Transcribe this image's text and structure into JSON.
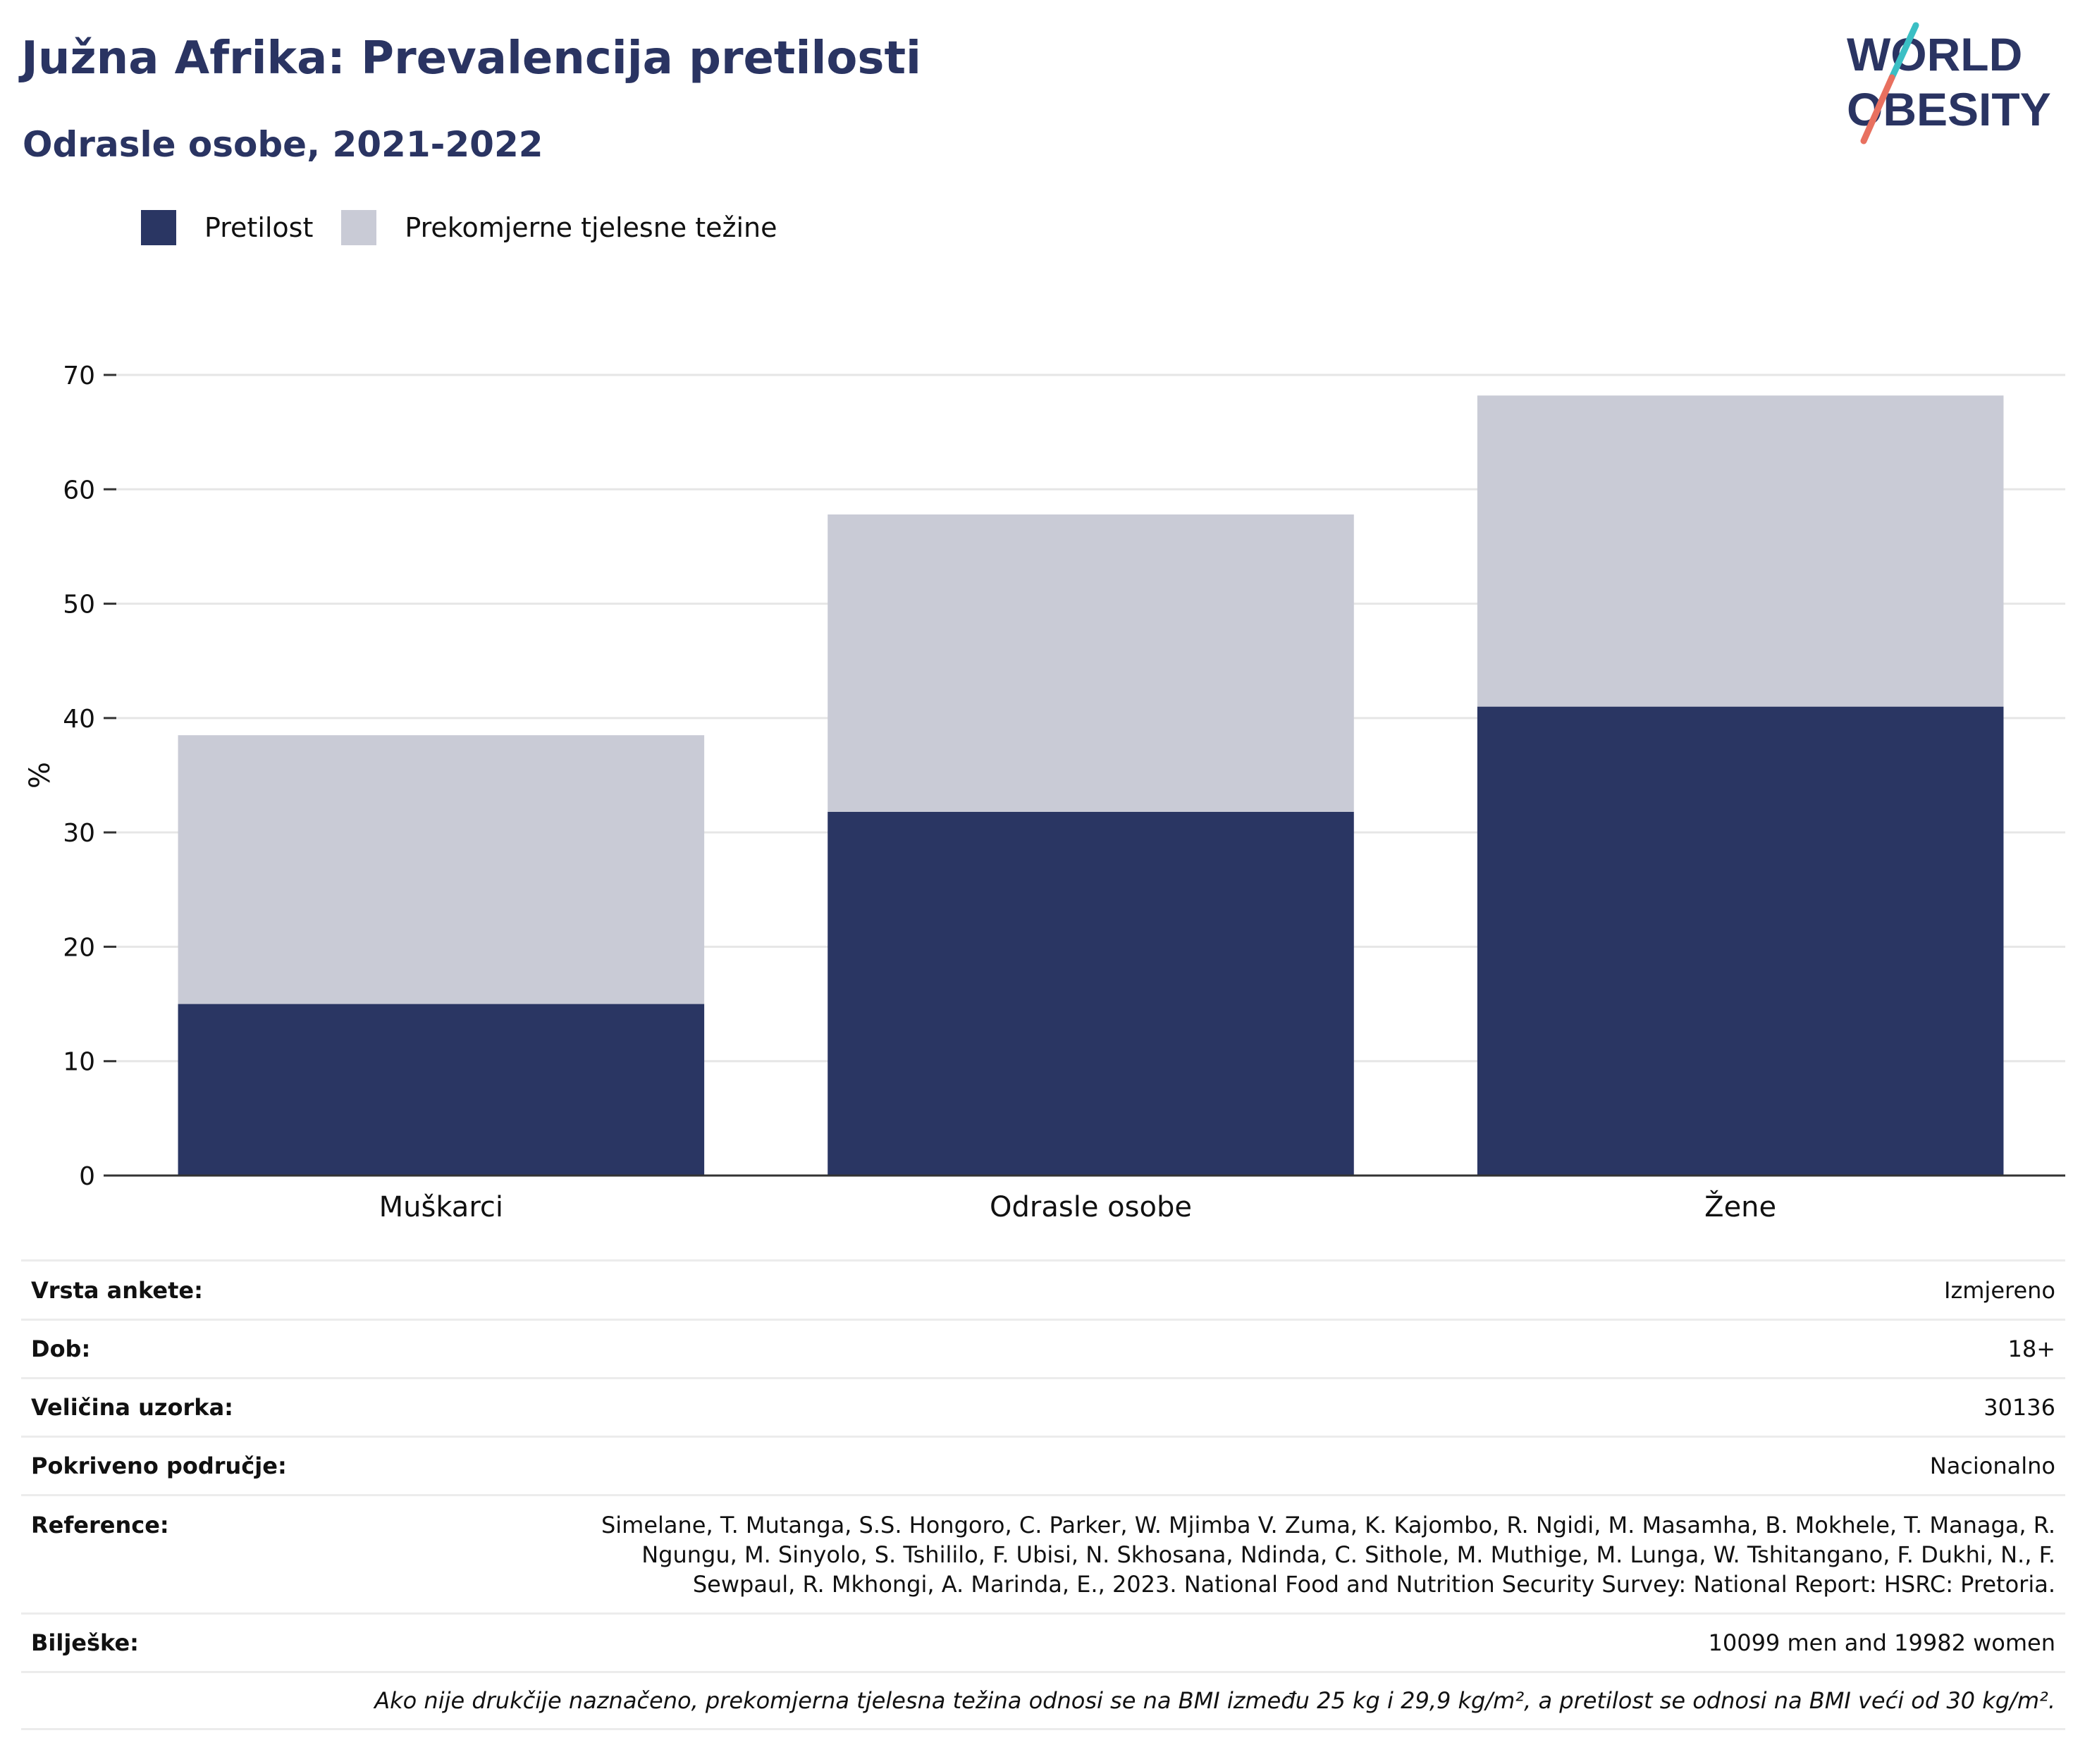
{
  "header": {
    "title": "Južna Afrika: Prevalencija pretilosti",
    "subtitle": "Odrasle osobe, 2021-2022"
  },
  "logo": {
    "line1": "WORLD",
    "line2": "OBESITY"
  },
  "colors": {
    "obesity": "#2a3663",
    "overweight": "#c9cbd6",
    "brand": "#2a3462",
    "accent_teal": "#3bbfc4",
    "accent_coral": "#e8705f"
  },
  "chart_data": {
    "type": "bar",
    "stacked": true,
    "categories": [
      "Muškarci",
      "Odrasle osobe",
      "Žene"
    ],
    "series": [
      {
        "name": "Pretilost",
        "values": [
          15.0,
          31.8,
          41.0
        ]
      },
      {
        "name": "Prekomjerne tjelesne težine",
        "values": [
          23.5,
          26.0,
          27.2
        ]
      }
    ],
    "ylabel": "%",
    "ylim": [
      0,
      70
    ],
    "yticks": [
      0,
      10,
      20,
      30,
      40,
      50,
      60,
      70
    ],
    "grid": true,
    "legend_position": "top-left"
  },
  "info": [
    {
      "label": "Vrsta ankete:",
      "value": "Izmjereno"
    },
    {
      "label": "Dob:",
      "value": "18+"
    },
    {
      "label": "Veličina uzorka:",
      "value": "30136"
    },
    {
      "label": "Pokriveno područje:",
      "value": "Nacionalno"
    },
    {
      "label": "Reference:",
      "value": "Simelane, T. Mutanga, S.S. Hongoro, C. Parker, W. Mjimba V. Zuma, K. Kajombo, R. Ngidi, M. Masamha, B. Mokhele, T. Managa, R. Ngungu, M. Sinyolo, S. Tshililo, F. Ubisi, N. Skhosana, Ndinda, C. Sithole, M. Muthige, M. Lunga, W. Tshitangano, F. Dukhi, N., F. Sewpaul, R. Mkhongi, A. Marinda, E., 2023. National Food and Nutrition Security Survey: National Report: HSRC: Pretoria."
    },
    {
      "label": "Bilješke:",
      "value": "10099 men and 19982 women"
    }
  ],
  "footnote": "Ako nije drukčije naznačeno, prekomjerna tjelesna težina odnosi se na BMI između 25 kg i 29,9 kg/m², a pretilost se odnosi na BMI veći od 30 kg/m²."
}
